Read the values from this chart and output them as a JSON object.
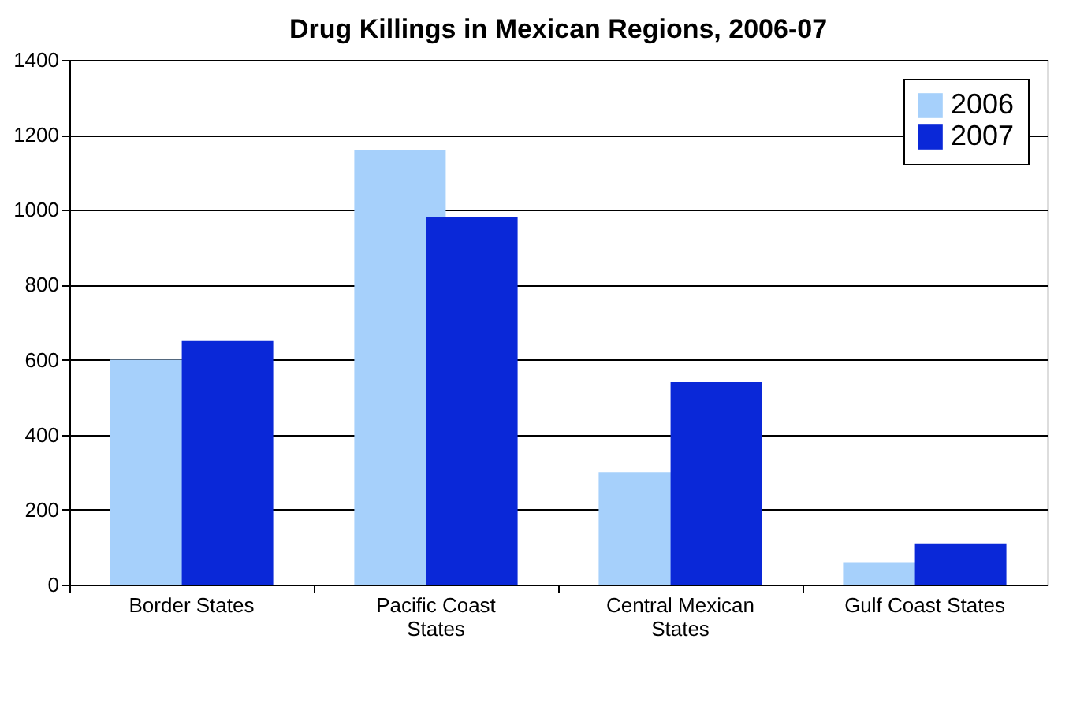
{
  "chart_data": {
    "type": "bar",
    "title": "Drug Killings in Mexican Regions, 2006-07",
    "categories": [
      "Border States",
      "Pacific Coast States",
      "Central Mexican States",
      "Gulf Coast States"
    ],
    "series": [
      {
        "name": "2006",
        "color": "#a6d0fb",
        "values": [
          600,
          1160,
          300,
          60
        ]
      },
      {
        "name": "2007",
        "color": "#0a28d8",
        "values": [
          650,
          980,
          540,
          110
        ]
      }
    ],
    "ylim": [
      0,
      1400
    ],
    "yticks": [
      0,
      200,
      400,
      600,
      800,
      1000,
      1200,
      1400
    ],
    "grid": "y",
    "legend": "top right"
  }
}
